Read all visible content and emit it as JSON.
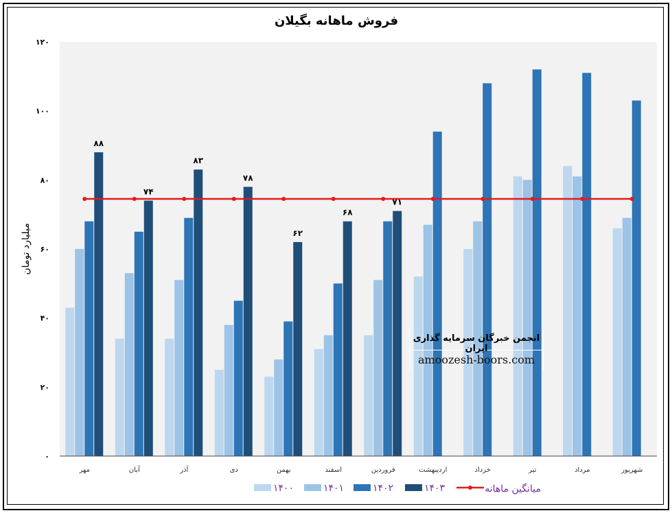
{
  "chart_data": {
    "type": "bar",
    "title": "فروش ماهانه بگیلان",
    "xlabel": "",
    "ylabel": "میلیارد تومان",
    "ylim": [
      0,
      120
    ],
    "yticks": [
      0,
      20,
      40,
      60,
      80,
      100,
      120
    ],
    "ytick_labels": [
      "۰",
      "۲۰",
      "۴۰",
      "۶۰",
      "۸۰",
      "۱۰۰",
      "۱۲۰"
    ],
    "grid": false,
    "legend_position": "bottom",
    "categories": [
      "مهر",
      "آبان",
      "آذر",
      "دی",
      "بهمن",
      "اسفند",
      "فروردین",
      "اردیبهشت",
      "خرداد",
      "تیر",
      "مرداد",
      "شهریور"
    ],
    "series": [
      {
        "name": "۱۴۰۰",
        "color": "#bdd7ee",
        "values": [
          43,
          34,
          34,
          25,
          23,
          31,
          35,
          52,
          60,
          81,
          84,
          66
        ]
      },
      {
        "name": "۱۴۰۱",
        "color": "#9dc3e6",
        "values": [
          60,
          53,
          51,
          38,
          28,
          35,
          51,
          67,
          68,
          80,
          81,
          69
        ]
      },
      {
        "name": "۱۴۰۲",
        "color": "#2e75b6",
        "values": [
          68,
          65,
          69,
          45,
          39,
          50,
          68,
          94,
          108,
          112,
          111,
          103
        ]
      },
      {
        "name": "۱۴۰۳",
        "color": "#1f4e79",
        "values": [
          88,
          74,
          83,
          78,
          62,
          68,
          71,
          null,
          null,
          null,
          null,
          null
        ],
        "data_labels": [
          "۸۸",
          "۷۴",
          "۸۳",
          "۷۸",
          "۶۲",
          "۶۸",
          "۷۱"
        ]
      }
    ],
    "line_series": {
      "name": "میانگین ماهانه",
      "color": "#e31a1c",
      "value": 74.5
    }
  },
  "watermark": {
    "line1": "انجمن خبرگان سرمایه گذاری ایران",
    "line2": "amoozesh-boors.com"
  }
}
